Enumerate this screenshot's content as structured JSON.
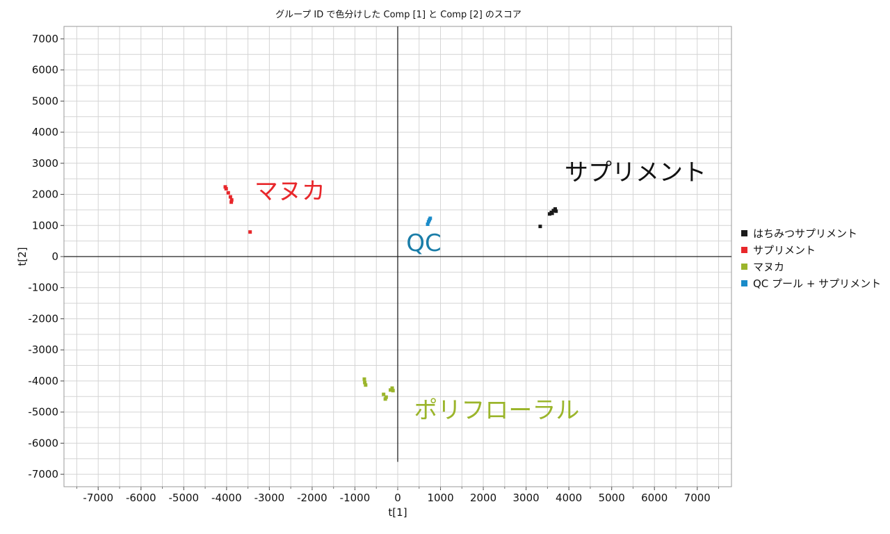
{
  "chart_data": {
    "type": "scatter",
    "title": "グループ ID で色分けした Comp [1] と Comp [2] のスコア",
    "xlabel": "t[1]",
    "ylabel": "t[2]",
    "xlim": [
      -7800,
      7800
    ],
    "ylim": [
      -7400,
      7400
    ],
    "xticks": [
      -7000,
      -6000,
      -5000,
      -4000,
      -3000,
      -2000,
      -1000,
      0,
      1000,
      2000,
      3000,
      4000,
      5000,
      6000,
      7000
    ],
    "yticks": [
      7000,
      6000,
      5000,
      4000,
      3000,
      2000,
      1000,
      0,
      -1000,
      -2000,
      -3000,
      -4000,
      -5000,
      -6000,
      -7000
    ],
    "grid": true,
    "legend_position": "right",
    "series": [
      {
        "name": "はちみつサプリメント",
        "color": "#1a1a1a",
        "points": [
          [
            3330,
            970
          ],
          [
            3550,
            1370
          ],
          [
            3590,
            1420
          ],
          [
            3640,
            1480
          ],
          [
            3680,
            1530
          ],
          [
            3610,
            1390
          ],
          [
            3700,
            1460
          ]
        ]
      },
      {
        "name": "サプリメント",
        "color": "#e8272b",
        "points": [
          [
            -4030,
            2240
          ],
          [
            -4010,
            2180
          ],
          [
            -3960,
            2050
          ],
          [
            -3910,
            1920
          ],
          [
            -3880,
            1820
          ],
          [
            -3890,
            1750
          ],
          [
            -3450,
            790
          ]
        ]
      },
      {
        "name": "マヌカ",
        "color": "#9bb52b",
        "points": [
          [
            -780,
            -3940
          ],
          [
            -770,
            -4050
          ],
          [
            -750,
            -4130
          ],
          [
            -330,
            -4430
          ],
          [
            -290,
            -4580
          ],
          [
            -170,
            -4290
          ],
          [
            -130,
            -4230
          ],
          [
            -110,
            -4310
          ],
          [
            -270,
            -4520
          ]
        ]
      },
      {
        "name": "QC プール + サプリメント",
        "color": "#1a8bc9",
        "points": [
          [
            700,
            1040
          ],
          [
            720,
            1120
          ],
          [
            740,
            1180
          ],
          [
            760,
            1230
          ]
        ]
      }
    ],
    "annotations": [
      {
        "text": "サプリメント",
        "x": 3900,
        "y": 2450,
        "color": "#111111"
      },
      {
        "text": "マヌカ",
        "x": -3350,
        "y": 1850,
        "color": "#e8272b"
      },
      {
        "text": "QC",
        "x": 200,
        "y": 180,
        "color": "#1a7da8"
      },
      {
        "text": "ポリフローラル",
        "x": 380,
        "y": -5200,
        "color": "#9bb52b"
      }
    ]
  }
}
